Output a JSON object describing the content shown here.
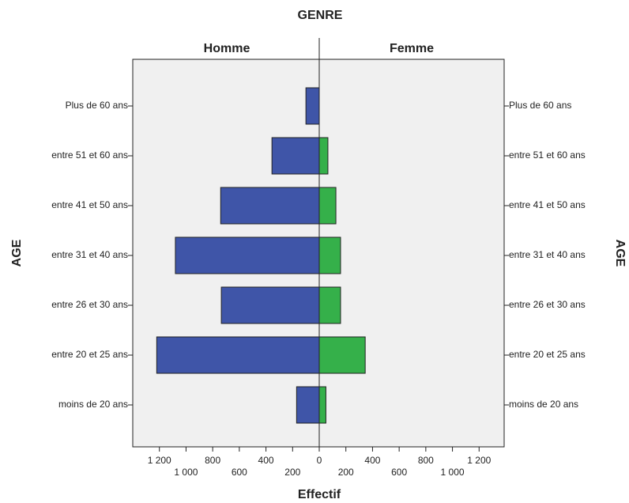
{
  "chart_data": {
    "type": "pyramid",
    "title": "GENRE",
    "x_label": "Effectif",
    "y_label": "AGE",
    "categories": [
      "Plus de 60 ans",
      "entre 51 et 60 ans",
      "entre 41 et 50 ans",
      "entre 31 et 40 ans",
      "entre 26 et 30 ans",
      "entre 20 et 25 ans",
      "moins de 20 ans"
    ],
    "series": [
      {
        "name": "Homme",
        "color": "#3f55a8",
        "values": [
          100,
          355,
          740,
          1080,
          735,
          1220,
          170
        ]
      },
      {
        "name": "Femme",
        "color": "#35b04a",
        "values": [
          0,
          65,
          125,
          160,
          160,
          345,
          50
        ]
      }
    ],
    "xlim": [
      0,
      1400
    ],
    "xticks": [
      0,
      200,
      400,
      600,
      800,
      {
        "value": 1000,
        "label": "1 000"
      },
      {
        "value": 1200,
        "label": "1 200"
      }
    ]
  }
}
